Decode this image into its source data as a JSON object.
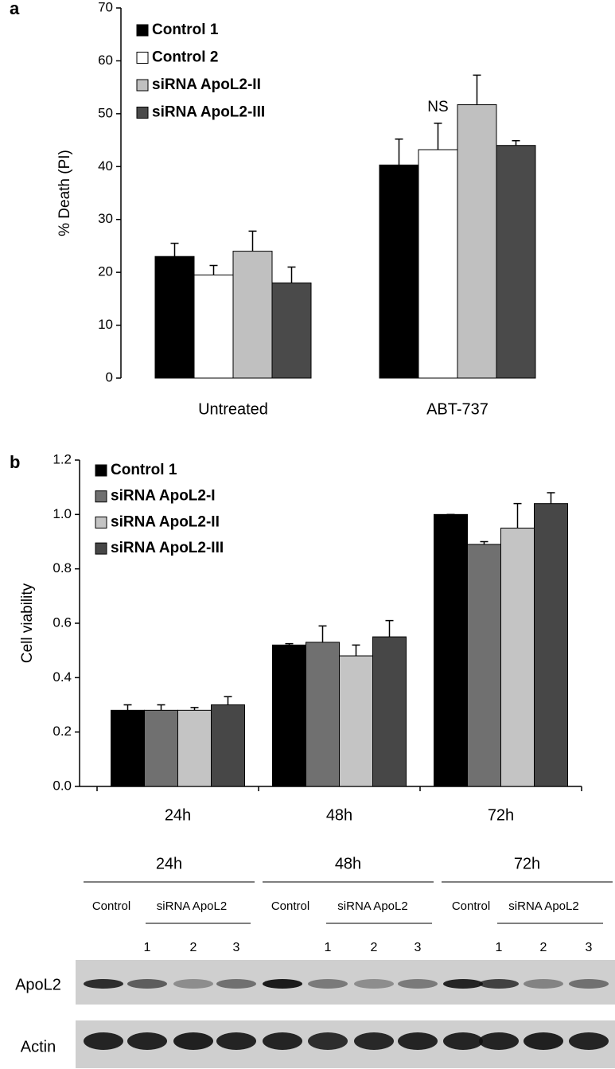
{
  "chart_data": [
    {
      "type": "bar",
      "panel_label": "a",
      "ylabel": "% Death (PI)",
      "categories": [
        "Untreated",
        "ABT-737"
      ],
      "series": [
        {
          "name": "Control 1",
          "color": "#000000",
          "values": [
            23,
            40.3
          ],
          "errors": [
            2.5,
            4.9
          ]
        },
        {
          "name": "Control 2",
          "color": "#ffffff",
          "values": [
            19.5,
            43.2
          ],
          "errors": [
            1.8,
            5
          ]
        },
        {
          "name": "siRNA  ApoL2-II",
          "color": "#c0c0c0",
          "values": [
            24,
            51.7
          ],
          "errors": [
            3.8,
            5.6
          ]
        },
        {
          "name": "siRNA  ApoL2-III",
          "color": "#4a4a4a",
          "values": [
            18,
            44
          ],
          "errors": [
            3,
            0.9
          ]
        }
      ],
      "annotation": "NS",
      "ylim": [
        0,
        70
      ],
      "yticks": [
        0,
        10,
        20,
        30,
        40,
        50,
        60,
        70
      ]
    },
    {
      "type": "bar",
      "panel_label": "b",
      "ylabel": "Cell viability",
      "categories": [
        "24h",
        "48h",
        "72h"
      ],
      "series": [
        {
          "name": "Control 1",
          "color": "#000000",
          "values": [
            0.28,
            0.52,
            1.0
          ],
          "errors": [
            0.02,
            0.005,
            0
          ]
        },
        {
          "name": "siRNA ApoL2-I",
          "color": "#707070",
          "values": [
            0.28,
            0.53,
            0.89
          ],
          "errors": [
            0.02,
            0.06,
            0.01
          ]
        },
        {
          "name": "siRNA ApoL2-II",
          "color": "#c4c4c4",
          "values": [
            0.28,
            0.48,
            0.95
          ],
          "errors": [
            0.01,
            0.04,
            0.09
          ]
        },
        {
          "name": "siRNA ApoL2-III",
          "color": "#474747",
          "values": [
            0.3,
            0.55,
            1.04
          ],
          "errors": [
            0.03,
            0.06,
            0.04
          ]
        }
      ],
      "ylim": [
        0,
        1.2
      ],
      "yticks": [
        {
          "value": 0,
          "label": "0.0"
        },
        0.2,
        0.4,
        0.6,
        0.8,
        {
          "value": 1,
          "label": "1.0"
        },
        1.2
      ]
    }
  ],
  "blot": {
    "timepoints": [
      {
        "label": "24h",
        "control": "Control",
        "sirna": "siRNA ApoL2",
        "lanes": [
          "1",
          "2",
          "3"
        ]
      },
      {
        "label": "48h",
        "control": "Control",
        "sirna": "siRNA ApoL2",
        "lanes": [
          "1",
          "2",
          "3"
        ]
      },
      {
        "label": "72h",
        "control": "Control",
        "sirna": "siRNA ApoL2",
        "lanes": [
          "1",
          "2",
          "3"
        ]
      }
    ],
    "rows": [
      "ApoL2",
      "Actin"
    ]
  }
}
